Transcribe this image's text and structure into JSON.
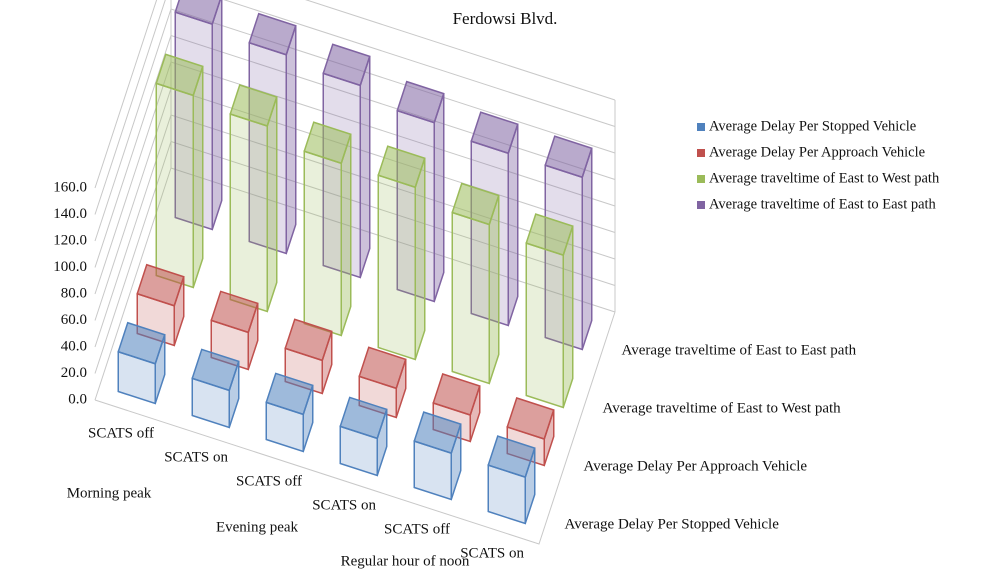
{
  "chart_data": {
    "type": "bar3d",
    "title": "Ferdowsi Blvd.",
    "categories": [
      "SCATS off",
      "SCATS on",
      "SCATS off",
      "SCATS on",
      "SCATS off",
      "SCATS on"
    ],
    "groups": [
      "Morning peak",
      "Evening peak",
      "Regular hour of noon"
    ],
    "series": [
      {
        "name": "Average Delay Per Stopped Vehicle",
        "color": "#4f81bd",
        "values": [
          30,
          28,
          28,
          28,
          35,
          35
        ]
      },
      {
        "name": "Average Delay Per Approach Vehicle",
        "color": "#c0504d",
        "values": [
          30,
          28,
          25,
          22,
          20,
          20
        ]
      },
      {
        "name": "Average traveltime of East to West path",
        "color": "#9bbb59",
        "values": [
          145,
          140,
          130,
          130,
          120,
          115
        ]
      },
      {
        "name": "Average traveltime of East to East path",
        "color": "#8064a2",
        "values": [
          155,
          150,
          145,
          135,
          130,
          130
        ]
      }
    ],
    "ylim": [
      0,
      160
    ],
    "yticks": [
      {
        "value": 0,
        "label": "0.0"
      },
      {
        "value": 20,
        "label": "20.0"
      },
      {
        "value": 40,
        "label": "40.0"
      },
      {
        "value": 60,
        "label": "60.0"
      },
      {
        "value": 80,
        "label": "80.0"
      },
      {
        "value": 100,
        "label": "100.0"
      },
      {
        "value": 120,
        "label": "120.0"
      },
      {
        "value": 140,
        "label": "140.0"
      },
      {
        "value": 160,
        "label": "160.0"
      }
    ],
    "grid": true,
    "legend": "right"
  }
}
